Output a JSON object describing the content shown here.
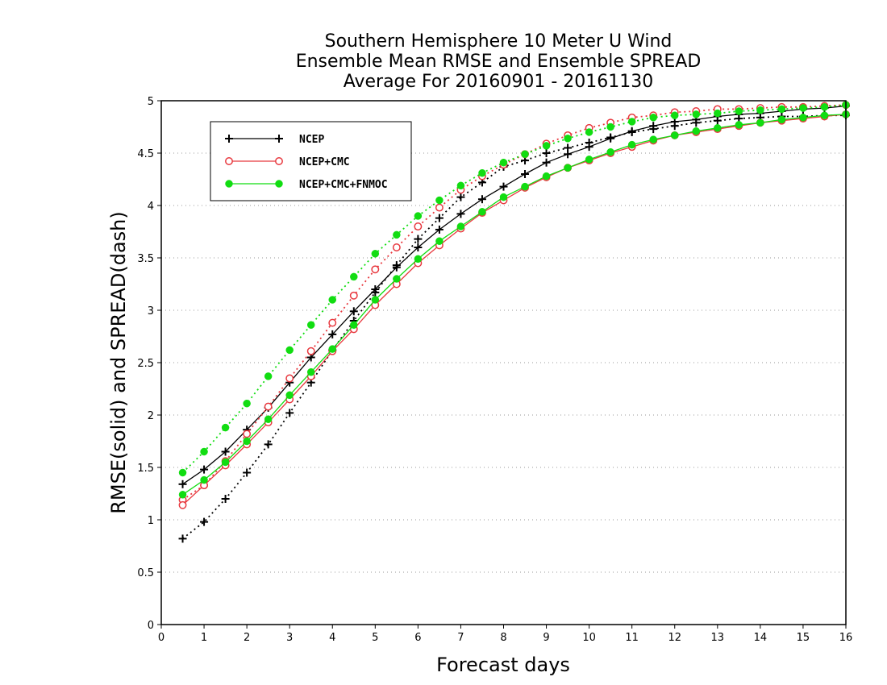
{
  "chart_data": {
    "type": "line",
    "title": [
      "Southern Hemisphere 10 Meter U Wind",
      "Ensemble Mean RMSE and Ensemble SPREAD",
      "Average For 20160901 - 20161130"
    ],
    "xlabel": "Forecast days",
    "ylabel": "RMSE(solid) and SPREAD(dash)",
    "xlim": [
      0,
      16
    ],
    "ylim": [
      0,
      5
    ],
    "xticks": [
      0,
      1,
      2,
      3,
      4,
      5,
      6,
      7,
      8,
      9,
      10,
      11,
      12,
      13,
      14,
      15,
      16
    ],
    "yticks": [
      0,
      0.5,
      1,
      1.5,
      2,
      2.5,
      3,
      3.5,
      4,
      4.5,
      5
    ],
    "grid": "horizontal-dotted",
    "legend_position": "top-left",
    "x": [
      0.5,
      1,
      1.5,
      2,
      2.5,
      3,
      3.5,
      4,
      4.5,
      5,
      5.5,
      6,
      6.5,
      7,
      7.5,
      8,
      8.5,
      9,
      9.5,
      10,
      10.5,
      11,
      11.5,
      12,
      12.5,
      13,
      13.5,
      14,
      14.5,
      15,
      15.5,
      16
    ],
    "series": [
      {
        "name": "NCEP",
        "color": "#000000",
        "marker": "plus",
        "rmse": [
          1.34,
          1.48,
          1.65,
          1.86,
          2.07,
          2.31,
          2.55,
          2.77,
          2.99,
          3.2,
          3.41,
          3.6,
          3.77,
          3.92,
          4.06,
          4.18,
          4.3,
          4.41,
          4.49,
          4.56,
          4.64,
          4.71,
          4.76,
          4.8,
          4.82,
          4.85,
          4.87,
          4.88,
          4.9,
          4.92,
          4.93,
          4.95
        ],
        "spread": [
          0.82,
          0.98,
          1.2,
          1.45,
          1.72,
          2.02,
          2.31,
          2.62,
          2.9,
          3.17,
          3.43,
          3.68,
          3.88,
          4.08,
          4.22,
          4.37,
          4.43,
          4.5,
          4.55,
          4.6,
          4.65,
          4.7,
          4.73,
          4.76,
          4.79,
          4.81,
          4.83,
          4.84,
          4.85,
          4.85,
          4.86,
          4.86
        ]
      },
      {
        "name": "NCEP+CMC",
        "color": "#e8393f",
        "marker": "circle-open",
        "rmse": [
          1.14,
          1.33,
          1.52,
          1.72,
          1.93,
          2.15,
          2.37,
          2.61,
          2.82,
          3.05,
          3.25,
          3.45,
          3.62,
          3.78,
          3.93,
          4.05,
          4.17,
          4.27,
          4.36,
          4.43,
          4.5,
          4.56,
          4.62,
          4.67,
          4.7,
          4.73,
          4.76,
          4.79,
          4.81,
          4.83,
          4.85,
          4.87
        ],
        "spread": [
          1.19,
          1.33,
          1.56,
          1.82,
          2.08,
          2.35,
          2.61,
          2.88,
          3.14,
          3.39,
          3.6,
          3.8,
          3.98,
          4.15,
          4.28,
          4.39,
          4.49,
          4.59,
          4.67,
          4.74,
          4.79,
          4.84,
          4.86,
          4.89,
          4.9,
          4.92,
          4.92,
          4.93,
          4.94,
          4.94,
          4.95,
          4.96
        ]
      },
      {
        "name": "NCEP+CMC+FNMOC",
        "color": "#11dd11",
        "marker": "circle-filled",
        "rmse": [
          1.24,
          1.38,
          1.55,
          1.75,
          1.96,
          2.19,
          2.41,
          2.63,
          2.86,
          3.1,
          3.3,
          3.49,
          3.66,
          3.8,
          3.94,
          4.08,
          4.18,
          4.28,
          4.36,
          4.44,
          4.51,
          4.58,
          4.63,
          4.67,
          4.71,
          4.74,
          4.77,
          4.79,
          4.82,
          4.84,
          4.86,
          4.87
        ],
        "spread": [
          1.45,
          1.65,
          1.88,
          2.11,
          2.37,
          2.62,
          2.86,
          3.1,
          3.32,
          3.54,
          3.72,
          3.9,
          4.05,
          4.19,
          4.31,
          4.41,
          4.49,
          4.57,
          4.64,
          4.7,
          4.75,
          4.8,
          4.84,
          4.86,
          4.87,
          4.88,
          4.9,
          4.91,
          4.92,
          4.93,
          4.94,
          4.96
        ]
      }
    ]
  }
}
